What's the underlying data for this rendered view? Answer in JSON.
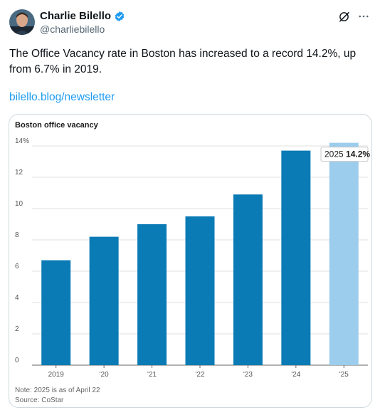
{
  "author": {
    "name": "Charlie Bilello",
    "handle": "@charliebilello"
  },
  "tweet": {
    "text": "The Office Vacancy rate in Boston has increased to a record 14.2%, up from 6.7% in 2019.",
    "link": "bilello.blog/newsletter"
  },
  "icons": [
    "verified-badge-icon",
    "grok-icon",
    "more-options-icon"
  ],
  "colors": {
    "accent": "#1d9bf0",
    "bar": "#0a7bb5",
    "bar_highlight": "#9dcdec"
  },
  "chart_data": {
    "type": "bar",
    "title": "Boston office vacancy",
    "categories": [
      "2019",
      "'20",
      "'21",
      "'22",
      "'23",
      "'24",
      "'25"
    ],
    "values": [
      6.7,
      8.2,
      9.0,
      9.5,
      10.9,
      13.7,
      14.2
    ],
    "ylim": [
      0,
      14
    ],
    "yticks": [
      "0",
      "2",
      "4",
      "6",
      "8",
      "10",
      "12",
      "14%"
    ],
    "ytick_values": [
      0,
      2,
      4,
      6,
      8,
      10,
      12,
      14
    ],
    "highlight_index": 6,
    "annotation": {
      "year": "2025",
      "value": "14.2%"
    },
    "notes": [
      "Note: 2025 is as of April 22",
      "Source: CoStar"
    ],
    "grid": true
  }
}
